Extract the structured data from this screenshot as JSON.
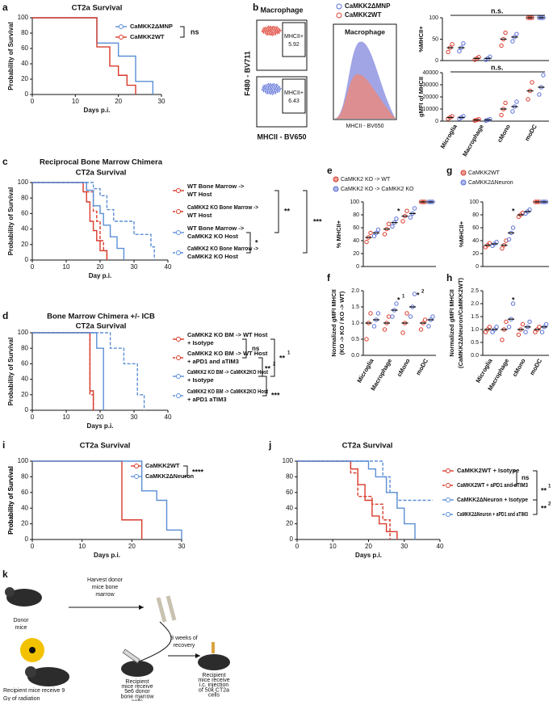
{
  "chart_data": [
    {
      "type": "survival",
      "label": "a",
      "title": "CT2a Survival",
      "x_label": "Days p.i.",
      "y_label": "Probability of Survival",
      "xlim": [
        0,
        30
      ],
      "xticks": [
        0,
        10,
        20,
        30
      ],
      "ylim": [
        0,
        100
      ],
      "yticks": [
        0,
        20,
        40,
        60,
        80,
        100
      ],
      "series": [
        {
          "name": "CaMKK2ΔMNP",
          "color": "#5b8fd6",
          "line_style": "solid",
          "x": [
            0,
            15,
            20,
            24,
            28
          ],
          "values": [
            100,
            67,
            50,
            17,
            0
          ]
        },
        {
          "name": "CaMKK2WT",
          "color": "#d93a2b",
          "line_style": "solid",
          "x": [
            0,
            15,
            18,
            20,
            22,
            24
          ],
          "values": [
            100,
            62,
            37,
            25,
            12,
            0
          ]
        }
      ],
      "annotations": [
        "ns"
      ]
    },
    {
      "type": "survival",
      "label": "c",
      "title": [
        "Reciprocal  Bone Marrow Chimera",
        "CT2a Survival"
      ],
      "x_label": "Day p.i.",
      "y_label": "Probability of Survival",
      "xlim": [
        0,
        40
      ],
      "xticks": [
        0,
        10,
        20,
        30,
        40
      ],
      "ylim": [
        0,
        100
      ],
      "yticks": [
        0,
        20,
        40,
        60,
        80,
        100
      ],
      "series": [
        {
          "name": [
            "WT Bone Marrow ->",
            "WT Host"
          ],
          "color": "#d93a2b",
          "line_style": "solid",
          "x": [
            0,
            15,
            16,
            17,
            18,
            19,
            20,
            22
          ],
          "values": [
            100,
            88,
            75,
            50,
            38,
            25,
            12,
            0
          ]
        },
        {
          "name": [
            "CaMKK2 KO Bone Marrow ->",
            "WT Host"
          ],
          "color": "#d93a2b",
          "line_style": "dashed",
          "x": [
            0,
            16,
            18,
            19,
            20,
            21,
            22
          ],
          "values": [
            100,
            88,
            63,
            50,
            25,
            12,
            0
          ]
        },
        {
          "name": [
            "WT Bone Marrow ->",
            "CaMKK2 KO Host"
          ],
          "color": "#5b8fd6",
          "line_style": "solid",
          "x": [
            0,
            16,
            18,
            20,
            21,
            23,
            25,
            27
          ],
          "values": [
            100,
            90,
            70,
            60,
            45,
            30,
            15,
            0
          ]
        },
        {
          "name": [
            "CaMKK2 KO Bone Marrow ->",
            "CaMKK2 KO Host"
          ],
          "color": "#5b8fd6",
          "line_style": "dashed",
          "x": [
            0,
            18,
            20,
            22,
            24,
            30,
            35,
            36
          ],
          "values": [
            100,
            92,
            83,
            65,
            50,
            33,
            17,
            0
          ]
        }
      ],
      "annotations": [
        "**",
        "***",
        "*"
      ]
    },
    {
      "type": "survival",
      "label": "d",
      "title": [
        "Bone Marrow Chimera +/- ICB",
        "CT2a  Survival"
      ],
      "x_label": "Days p.i.",
      "y_label": "Probability of Survival",
      "xlim": [
        0,
        40
      ],
      "xticks": [
        0,
        10,
        20,
        30,
        40
      ],
      "ylim": [
        0,
        100
      ],
      "yticks": [
        0,
        20,
        40,
        60,
        80,
        100
      ],
      "series": [
        {
          "name": [
            "CaMKK2 KO BM -> WT Host",
            "+ Isotype"
          ],
          "color": "#d93a2b",
          "line_style": "solid",
          "x": [
            0,
            17,
            18
          ],
          "values": [
            100,
            25,
            0
          ]
        },
        {
          "name": [
            "CaMKK2 KO BM -> WT Host",
            "+ aPD1 and aTIM3"
          ],
          "color": "#d93a2b",
          "line_style": "dashed",
          "x": [
            0,
            17,
            18
          ],
          "values": [
            100,
            20,
            0
          ]
        },
        {
          "name": [
            "CaMKK2 KO BM -> CaMKK2KO Host",
            "+ Isotype"
          ],
          "color": "#5b8fd6",
          "line_style": "solid",
          "x": [
            0,
            19,
            21
          ],
          "values": [
            100,
            80,
            0
          ]
        },
        {
          "name": [
            "CaMKK2 KO BM -> CaMKK2KO Host",
            "+ aPD1 aTIM3"
          ],
          "color": "#5b8fd6",
          "line_style": "dashed",
          "x": [
            0,
            23,
            27,
            31,
            33
          ],
          "values": [
            100,
            80,
            60,
            20,
            0
          ]
        }
      ],
      "annotations": [
        "ns",
        "**",
        "1",
        "**",
        "2",
        "***"
      ]
    },
    {
      "type": "survival",
      "label": "i",
      "title": "CT2a Survival",
      "x_label": "Days p.i.",
      "y_label": "Probability of Survival",
      "xlim": [
        0,
        30
      ],
      "xticks": [
        0,
        10,
        20,
        30
      ],
      "ylim": [
        0,
        100
      ],
      "yticks": [
        0,
        20,
        40,
        60,
        80,
        100
      ],
      "series": [
        {
          "name": "CaMKK2WT",
          "color": "#d93a2b",
          "line_style": "solid",
          "x": [
            0,
            18,
            22
          ],
          "values": [
            100,
            25,
            0
          ]
        },
        {
          "name": "CaMKK2ΔNeuron",
          "color": "#5b8fd6",
          "line_style": "solid",
          "x": [
            0,
            22,
            25,
            27,
            30
          ],
          "values": [
            100,
            62,
            50,
            12,
            0
          ]
        }
      ],
      "annotations": [
        "****"
      ]
    },
    {
      "type": "survival",
      "label": "j",
      "title": "CT2a Survival",
      "x_label": "Days p.i.",
      "y_label": "Probability of Survival",
      "xlim": [
        0,
        40
      ],
      "xticks": [
        0,
        10,
        20,
        30,
        40
      ],
      "ylim": [
        0,
        100
      ],
      "yticks": [
        0,
        20,
        40,
        60,
        80,
        100
      ],
      "series": [
        {
          "name": "CaMKK2WT + Isotype",
          "color": "#d93a2b",
          "line_style": "solid",
          "x": [
            0,
            15,
            17,
            19,
            21,
            23,
            25,
            28
          ],
          "values": [
            100,
            90,
            70,
            50,
            30,
            20,
            10,
            0
          ]
        },
        {
          "name": "CaMKK2WT + aPD1 and aTIM3",
          "color": "#d93a2b",
          "line_style": "dashed",
          "x": [
            0,
            15,
            17,
            21,
            24,
            26
          ],
          "values": [
            100,
            85,
            55,
            45,
            25,
            0
          ]
        },
        {
          "name": "CaMKK2ΔNeuron + Isotype",
          "color": "#5b8fd6",
          "line_style": "solid",
          "x": [
            0,
            20,
            22,
            25,
            28,
            30,
            33
          ],
          "values": [
            100,
            90,
            80,
            60,
            40,
            20,
            0
          ]
        },
        {
          "name": "CaMKK2ΔNeuron + aPD1 and aTIM3",
          "color": "#5b8fd6",
          "line_style": "dashed",
          "x": [
            0,
            24,
            26,
            28,
            38
          ],
          "values": [
            100,
            80,
            60,
            50,
            50
          ]
        }
      ],
      "annotations": [
        "ns",
        "**",
        "1",
        "**",
        "2"
      ]
    },
    {
      "type": "dot",
      "label": "e",
      "y_label": "% MHCII+",
      "ylim": [
        0,
        100
      ],
      "yticks": [
        0,
        20,
        40,
        60,
        80,
        100
      ],
      "series": [
        {
          "name": "CaMKK2 KO -> WT",
          "color": "#d93a2b",
          "values": [
            45,
            58,
            78,
            100
          ],
          "points": [
            [
              38,
              45,
              52
            ],
            [
              50,
              58,
              66
            ],
            [
              70,
              78,
              86
            ],
            [
              100,
              100,
              100
            ]
          ]
        },
        {
          "name": "CaMKK2 KO -> CaMKK2 KO",
          "color": "#5b6fd6",
          "values": [
            52,
            68,
            82,
            100
          ],
          "points": [
            [
              47,
              52,
              57
            ],
            [
              62,
              68,
              74
            ],
            [
              76,
              82,
              90
            ],
            [
              100,
              100,
              100
            ]
          ]
        }
      ],
      "annotations": [
        "*"
      ]
    },
    {
      "type": "dot",
      "label": "f",
      "y_label": [
        "Normalized gMFI MHCII",
        "(KO -> KO / KO -> WT)"
      ],
      "ylim": [
        0,
        2
      ],
      "yticks": [
        {
          "value": 0,
          "label": "0.0"
        },
        0.5,
        {
          "value": 1,
          "label": "1.0"
        },
        1.5,
        {
          "value": 2,
          "label": "2.0"
        }
      ],
      "categories": [
        "Microglia",
        "Macrophage",
        "cMono",
        "moDC"
      ],
      "series": [
        {
          "color": "#d93a2b",
          "values": [
            1,
            1,
            1,
            1
          ],
          "points": [
            [
              0.5,
              1,
              1.3
            ],
            [
              0.8,
              1,
              1.2
            ],
            [
              0.7,
              1,
              1.3
            ],
            [
              0.8,
              1,
              1.1
            ]
          ]
        },
        {
          "color": "#5b6fd6",
          "values": [
            1.1,
            1.4,
            1.5,
            1.1
          ],
          "points": [
            [
              0.9,
              1.1,
              1.3
            ],
            [
              1.2,
              1.4,
              1.6
            ],
            [
              1.2,
              1.5,
              1.9
            ],
            [
              0.9,
              1.1,
              1.2
            ]
          ]
        }
      ],
      "annotations": [
        "*",
        "1",
        "*",
        "2"
      ]
    },
    {
      "type": "dot",
      "label": "g",
      "y_label": "%MHCII+",
      "ylim": [
        0,
        100
      ],
      "yticks": [
        0,
        20,
        40,
        60,
        80,
        100
      ],
      "series": [
        {
          "name": "CaMKK2WT",
          "color": "#d93a2b",
          "values": [
            33,
            33,
            80,
            100
          ],
          "points": [
            [
              30,
              33,
              36
            ],
            [
              28,
              33,
              40
            ],
            [
              77,
              80,
              83
            ],
            [
              100,
              100,
              100
            ]
          ]
        },
        {
          "name": "CaMKK2ΔNeuron",
          "color": "#5b6fd6",
          "values": [
            35,
            52,
            85,
            100
          ],
          "points": [
            [
              32,
              35,
              38
            ],
            [
              42,
              52,
              60
            ],
            [
              82,
              85,
              88
            ],
            [
              100,
              100,
              100
            ]
          ]
        }
      ],
      "annotations": [
        "*"
      ]
    },
    {
      "type": "dot",
      "label": "h",
      "y_label": [
        "Normalized gMFI MHCII",
        "(CaMKK2ΔNeuron/CaMKK2WT)"
      ],
      "ylim": [
        0,
        2.5
      ],
      "yticks": [
        {
          "value": 0,
          "label": "0.0"
        },
        0.5,
        {
          "value": 1,
          "label": "1.0"
        },
        1.5,
        {
          "value": 2,
          "label": "2.0"
        },
        2.5
      ],
      "categories": [
        "Microglia",
        "Macrophage",
        "cMono",
        "moDC"
      ],
      "series": [
        {
          "color": "#d93a2b",
          "values": [
            1,
            1,
            1,
            1
          ],
          "points": [
            [
              0.9,
              1,
              1.1
            ],
            [
              0.6,
              1,
              1.3
            ],
            [
              0.8,
              1,
              1.2
            ],
            [
              0.9,
              1,
              1.1
            ]
          ]
        },
        {
          "color": "#5b6fd6",
          "values": [
            1,
            1.4,
            1.1,
            1.1
          ],
          "points": [
            [
              0.9,
              1,
              1.1
            ],
            [
              1.1,
              1.4,
              2
            ],
            [
              0.9,
              1.1,
              1.3
            ],
            [
              0.9,
              1.1,
              1.2
            ]
          ]
        }
      ],
      "annotations": [
        "*"
      ]
    },
    {
      "type": "dot",
      "y_label": "%MHCII+",
      "ylim": [
        0,
        100
      ],
      "yticks": [
        0,
        50,
        100
      ],
      "series": [
        {
          "color": "#d93a2b",
          "values": [
            30,
            5,
            50,
            100
          ],
          "points": [
            [
              20,
              30,
              38
            ],
            [
              2,
              5,
              8
            ],
            [
              35,
              50,
              65
            ],
            [
              100,
              100,
              100
            ]
          ]
        },
        {
          "color": "#5b6fd6",
          "values": [
            30,
            5,
            55,
            100
          ],
          "points": [
            [
              22,
              30,
              40
            ],
            [
              2,
              5,
              9
            ],
            [
              45,
              55,
              62
            ],
            [
              100,
              100,
              100
            ]
          ]
        }
      ],
      "annotations": [
        "n.s."
      ]
    },
    {
      "type": "dot",
      "y_label": "gMFI of MHCII",
      "ylim": [
        0,
        40000
      ],
      "yticks": [
        0,
        10000,
        20000,
        30000,
        40000
      ],
      "categories": [
        "Microglia",
        "Macrophage",
        "cMono",
        "moDC"
      ],
      "series": [
        {
          "color": "#d93a2b",
          "values": [
            3000,
            1000,
            10000,
            25000
          ],
          "points": [
            [
              2000,
              3000,
              4000
            ],
            [
              500,
              1000,
              1500
            ],
            [
              5000,
              10000,
              15000
            ],
            [
              18000,
              25000,
              32000
            ]
          ]
        },
        {
          "color": "#5b6fd6",
          "values": [
            3000,
            1000,
            12000,
            28000
          ],
          "points": [
            [
              2000,
              3000,
              4000
            ],
            [
              500,
              1000,
              1500
            ],
            [
              8000,
              12000,
              16000
            ],
            [
              22000,
              28000,
              38000
            ]
          ]
        }
      ],
      "annotations": [
        "n.s."
      ]
    }
  ],
  "flow": {
    "label": "b",
    "title": "Macrophage",
    "y_label": "F480 - BV711",
    "x_label": "MHCII - BV650",
    "gate_label": "MHCII+",
    "gate_values": [
      5.92,
      6.43
    ],
    "histogram": {
      "title": "Macrophage",
      "x_label": "MHCII - BV650",
      "legend": [
        "CaMKK2ΔMNP",
        "CaMKK2WT"
      ]
    }
  },
  "schematic": {
    "label": "k",
    "harvest": [
      "Harvest donor",
      "mice bone",
      "marrow"
    ],
    "donor": [
      "Donor",
      "mice"
    ],
    "irradiation": [
      "Recipient mice receive 9",
      "Gy of radiation"
    ],
    "transplant": [
      "Recipient",
      "mice receive",
      "5e6 donor",
      "bone marrow",
      "cells"
    ],
    "recovery": [
      "8 weeks of",
      "recovery"
    ],
    "injection": [
      "Recipient",
      "mice receive",
      "i.c. injection",
      "of 50k CT2a",
      "cells"
    ]
  }
}
